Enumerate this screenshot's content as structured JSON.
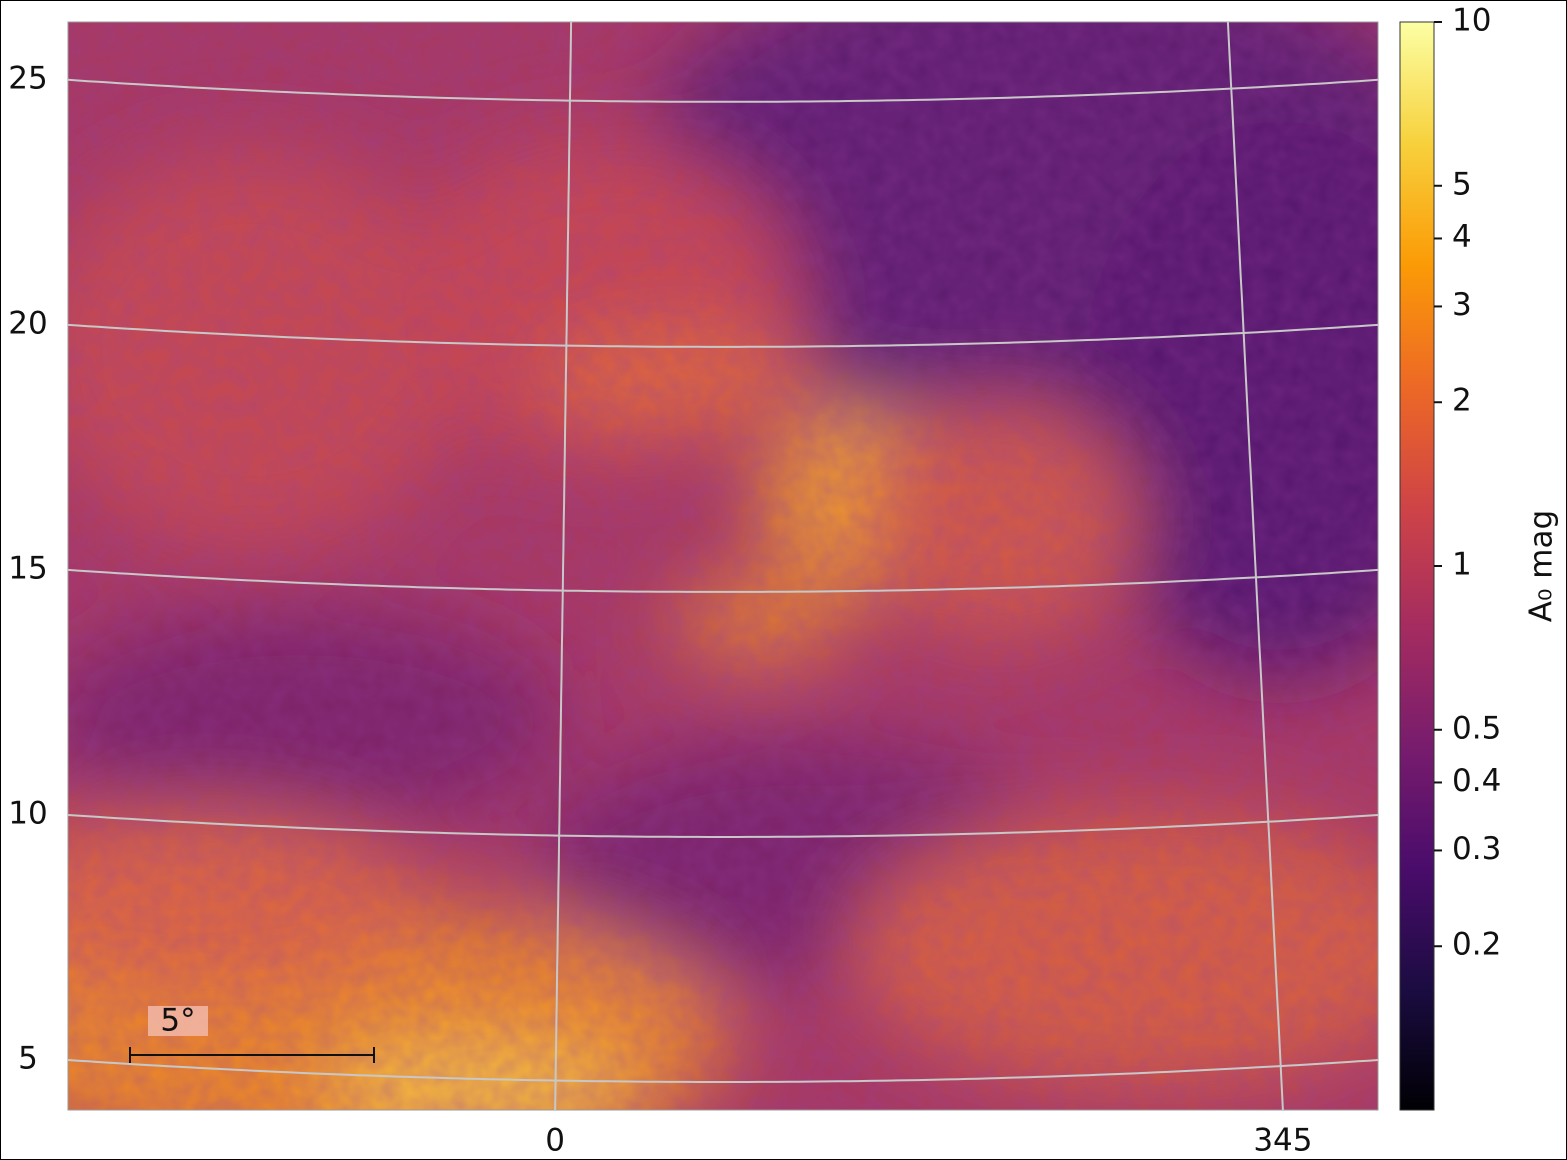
{
  "chart_data": {
    "type": "map",
    "xlim": [
      10.04,
      -16.96
    ],
    "xticks": [
      0,
      {
        "value": -15,
        "label": "345"
      }
    ],
    "ylim": [
      3.98,
      26.18
    ],
    "yticks": [
      5,
      10,
      15,
      20,
      25
    ],
    "grid": true,
    "grid_color": "#c8c8c8",
    "scale_bar": {
      "label": "5°"
    },
    "colorbar": {
      "label": "A₀ mag",
      "log": true,
      "lim": [
        0.1,
        10
      ],
      "ticks": [
        0.2,
        0.3,
        0.4,
        0.5,
        1,
        2,
        3,
        4,
        5,
        10
      ],
      "colors": [
        "#000004",
        "#1b0c41",
        "#4a0c6b",
        "#781c6d",
        "#a52c60",
        "#cf4446",
        "#ed6925",
        "#fb9b06",
        "#f7d13d",
        "#fcffa4"
      ]
    }
  }
}
